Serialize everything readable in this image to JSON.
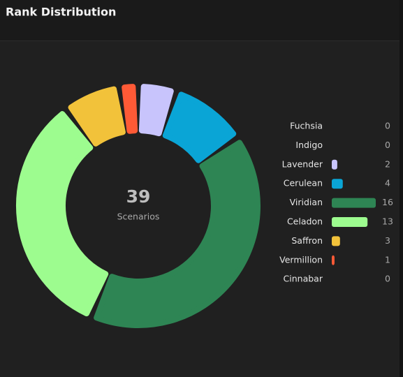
{
  "chart_data": {
    "type": "donut",
    "title": "Rank Distribution",
    "center_value": 39,
    "center_label": "Scenarios",
    "categories": [
      "Fuchsia",
      "Indigo",
      "Lavender",
      "Cerulean",
      "Viridian",
      "Celadon",
      "Saffron",
      "Vermillion",
      "Cinnabar"
    ],
    "values": [
      0,
      0,
      2,
      4,
      16,
      13,
      3,
      1,
      0
    ],
    "colors": [
      null,
      null,
      "#c8c4fc",
      "#0aa5d6",
      "#2e8554",
      "#9dfc8f",
      "#f2c23a",
      "#ff5a36",
      null
    ]
  }
}
